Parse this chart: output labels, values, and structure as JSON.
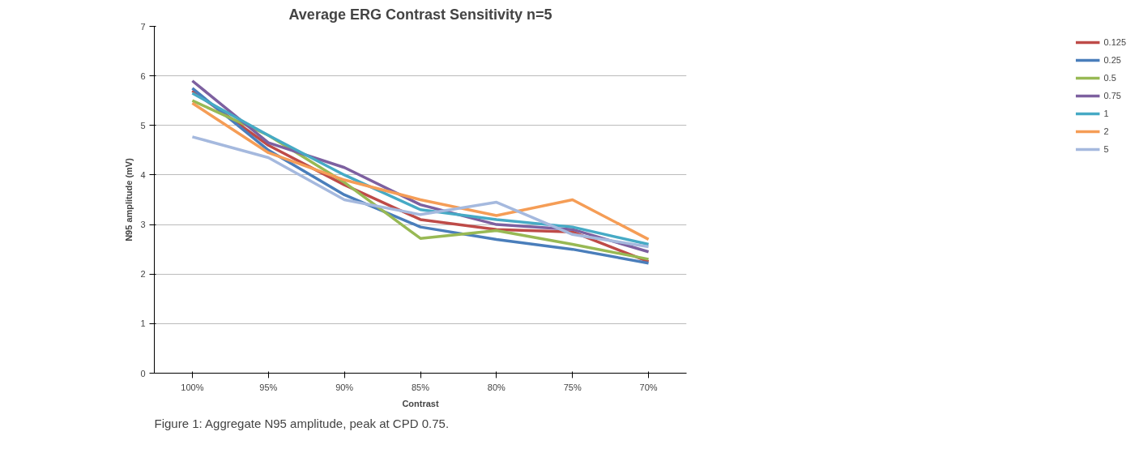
{
  "chart_data": {
    "type": "line",
    "title": "Average ERG Contrast Sensitivity n=5",
    "xlabel": "Contrast",
    "ylabel": "N95 amplitude (mV)",
    "categories": [
      "100%",
      "95%",
      "90%",
      "85%",
      "80%",
      "75%",
      "70%"
    ],
    "series": [
      {
        "name": "0.125",
        "color": "#be4b48",
        "values": [
          5.7,
          4.6,
          3.8,
          3.1,
          2.9,
          2.85,
          2.25
        ]
      },
      {
        "name": "0.25",
        "color": "#4a7ebb",
        "values": [
          5.75,
          4.5,
          3.6,
          2.95,
          2.7,
          2.5,
          2.22
        ]
      },
      {
        "name": "0.5",
        "color": "#98b954",
        "values": [
          5.5,
          4.8,
          3.85,
          2.72,
          2.88,
          2.6,
          2.3
        ]
      },
      {
        "name": "0.75",
        "color": "#7d60a0",
        "values": [
          5.9,
          4.65,
          4.15,
          3.4,
          3.0,
          2.9,
          2.45
        ]
      },
      {
        "name": "1",
        "color": "#46aac5",
        "values": [
          5.65,
          4.8,
          4.0,
          3.3,
          3.1,
          2.95,
          2.6
        ]
      },
      {
        "name": "2",
        "color": "#f59d56",
        "values": [
          5.45,
          4.45,
          3.9,
          3.5,
          3.18,
          3.5,
          2.7
        ]
      },
      {
        "name": "5",
        "color": "#a5b9de",
        "values": [
          4.77,
          4.35,
          3.5,
          3.2,
          3.45,
          2.8,
          2.55
        ]
      }
    ],
    "ylim": [
      0,
      7
    ],
    "yticks": [
      0,
      1,
      2,
      3,
      4,
      5,
      6,
      7
    ],
    "grid": "y",
    "legend": "right",
    "marker": "none",
    "line_style": "solid",
    "annotations": [
      "Figure 1: Aggregate N95 amplitude, peak at CPD 0.75."
    ]
  }
}
